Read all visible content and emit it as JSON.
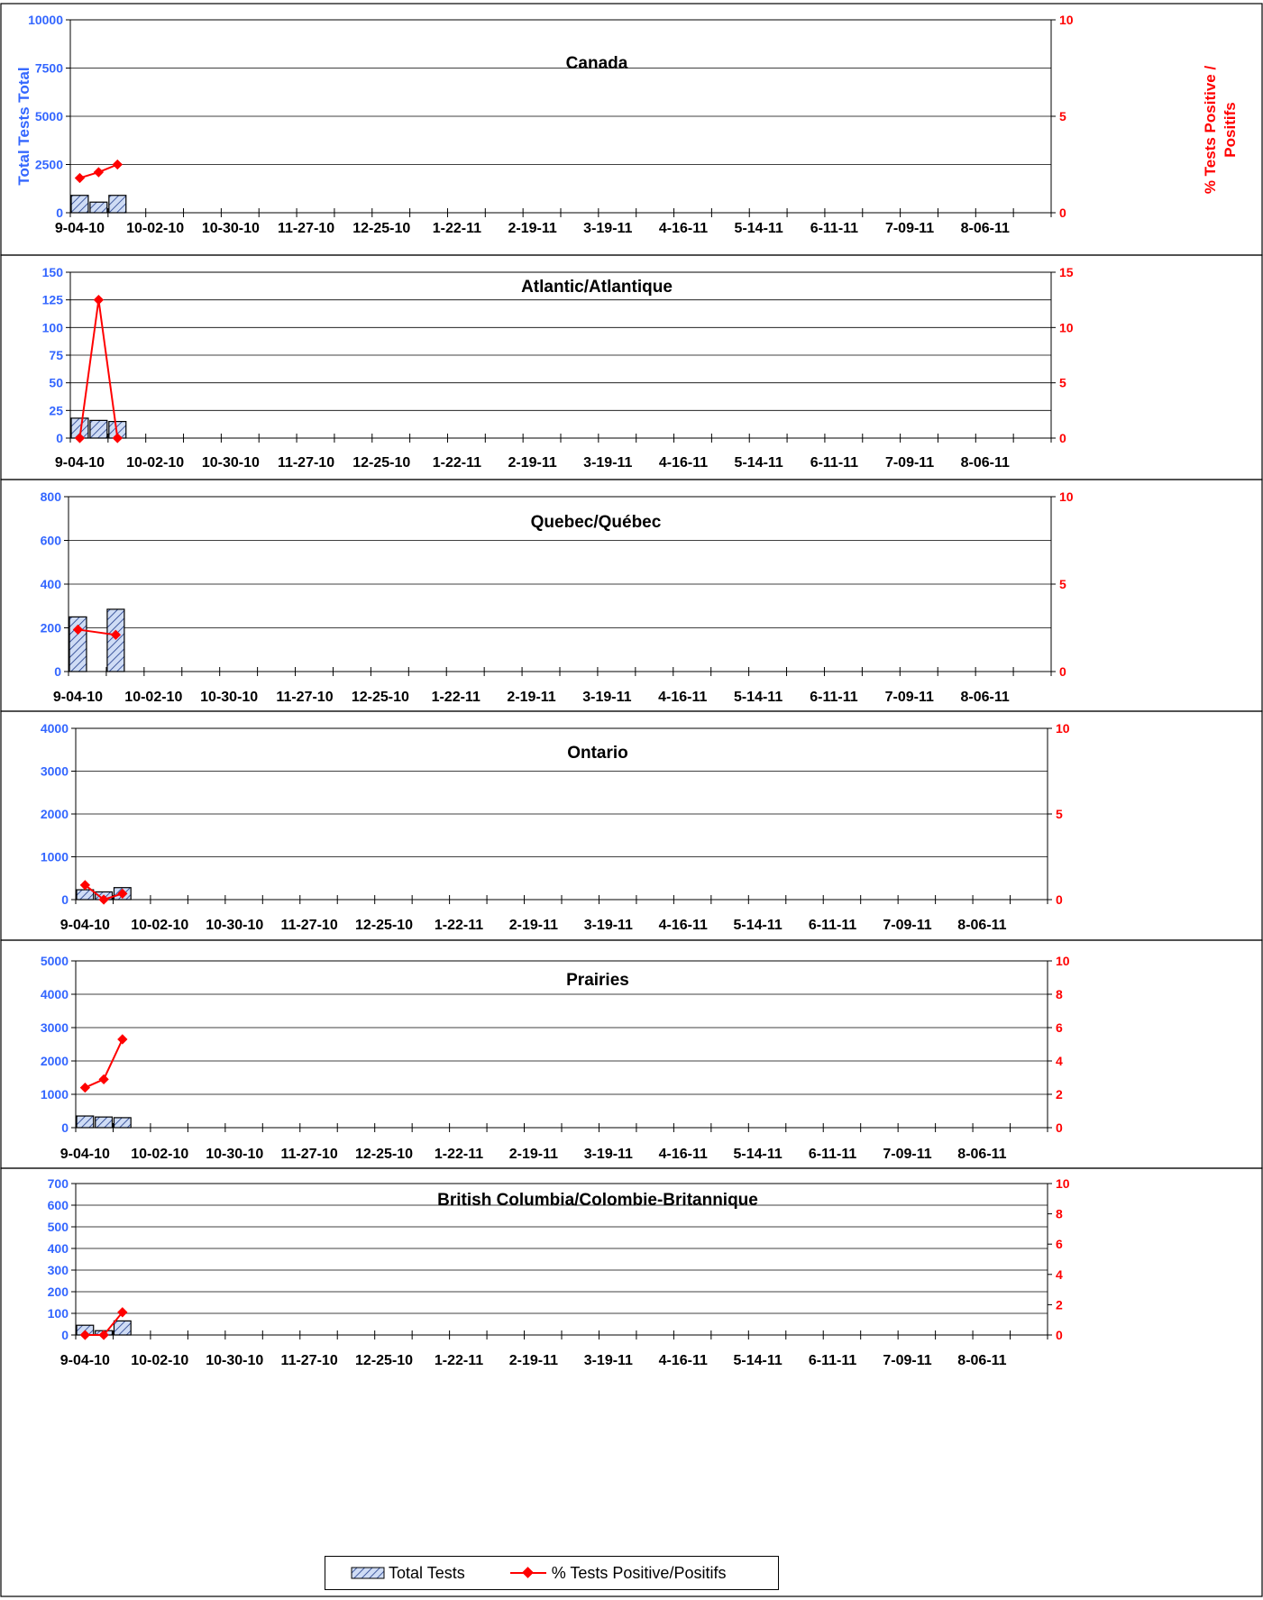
{
  "chart_data": {
    "type": "bar",
    "colors": {
      "bar_fill": "#cfdcf5",
      "bar_hatch": "#1f3b8a",
      "bar_stroke": "#000000",
      "line": "#ff0000",
      "left_axis_text": "#3366ff",
      "right_axis_text": "#ff0000"
    },
    "x_tick_labels": [
      "9-04-10",
      "10-02-10",
      "10-30-10",
      "11-27-10",
      "12-25-10",
      "1-22-11",
      "2-19-11",
      "3-19-11",
      "4-16-11",
      "5-14-11",
      "6-11-11",
      "7-09-11",
      "8-06-11"
    ],
    "x_range_weeks": 52,
    "left_axis_label": "Total Tests Total",
    "right_axis_label": "% Tests Positive / Positifs",
    "legend": {
      "bars": "Total Tests",
      "line": "% Tests Positive/Positifs"
    },
    "panels": [
      {
        "title": "Canada",
        "ylim": [
          0,
          10000
        ],
        "yticks": [
          0,
          2500,
          5000,
          7500,
          10000
        ],
        "y2lim": [
          0,
          10
        ],
        "y2ticks": [
          0,
          5,
          10
        ],
        "bars": [
          {
            "week": 0,
            "value": 900
          },
          {
            "week": 1,
            "value": 550
          },
          {
            "week": 2,
            "value": 900
          }
        ],
        "line": [
          {
            "week": 0,
            "value": 1.8
          },
          {
            "week": 1,
            "value": 2.1
          },
          {
            "week": 2,
            "value": 2.5
          }
        ]
      },
      {
        "title": "Atlantic/Atlantique",
        "ylim": [
          0,
          150
        ],
        "yticks": [
          0,
          25,
          50,
          75,
          100,
          125,
          150
        ],
        "y2lim": [
          0,
          15
        ],
        "y2ticks": [
          0,
          5,
          10,
          15
        ],
        "bars": [
          {
            "week": 0,
            "value": 18
          },
          {
            "week": 1,
            "value": 16
          },
          {
            "week": 2,
            "value": 15
          }
        ],
        "line": [
          {
            "week": 0,
            "value": 0
          },
          {
            "week": 1,
            "value": 12.5
          },
          {
            "week": 2,
            "value": 0
          }
        ]
      },
      {
        "title": "Quebec/Québec",
        "ylim": [
          0,
          800
        ],
        "yticks": [
          0,
          200,
          400,
          600,
          800
        ],
        "y2lim": [
          0,
          10
        ],
        "y2ticks": [
          0,
          5,
          10
        ],
        "bars": [
          {
            "week": 0,
            "value": 250
          },
          {
            "week": 2,
            "value": 285
          }
        ],
        "line": [
          {
            "week": 0,
            "value": 2.4
          },
          {
            "week": 2,
            "value": 2.1
          }
        ]
      },
      {
        "title": "Ontario",
        "ylim": [
          0,
          4000
        ],
        "yticks": [
          0,
          1000,
          2000,
          3000,
          4000
        ],
        "y2lim": [
          0,
          10
        ],
        "y2ticks": [
          0,
          5,
          10
        ],
        "bars": [
          {
            "week": 0,
            "value": 230
          },
          {
            "week": 1,
            "value": 180
          },
          {
            "week": 2,
            "value": 280
          }
        ],
        "line": [
          {
            "week": 0,
            "value": 0.85
          },
          {
            "week": 1,
            "value": 0
          },
          {
            "week": 2,
            "value": 0.35
          }
        ]
      },
      {
        "title": "Prairies",
        "ylim": [
          0,
          5000
        ],
        "yticks": [
          0,
          1000,
          2000,
          3000,
          4000,
          5000
        ],
        "y2lim": [
          0,
          10
        ],
        "y2ticks": [
          0,
          2,
          4,
          6,
          8,
          10
        ],
        "bars": [
          {
            "week": 0,
            "value": 350
          },
          {
            "week": 1,
            "value": 320
          },
          {
            "week": 2,
            "value": 300
          }
        ],
        "line": [
          {
            "week": 0,
            "value": 2.4
          },
          {
            "week": 1,
            "value": 2.9
          },
          {
            "week": 2,
            "value": 5.3
          }
        ]
      },
      {
        "title": "British Columbia/Colombie-Britannique",
        "ylim": [
          0,
          700
        ],
        "yticks": [
          0,
          100,
          200,
          300,
          400,
          500,
          600,
          700
        ],
        "y2lim": [
          0,
          10
        ],
        "y2ticks": [
          0,
          2,
          4,
          6,
          8,
          10
        ],
        "bars": [
          {
            "week": 0,
            "value": 45
          },
          {
            "week": 1,
            "value": 20
          },
          {
            "week": 2,
            "value": 65
          }
        ],
        "line": [
          {
            "week": 0,
            "value": 0
          },
          {
            "week": 1,
            "value": 0
          },
          {
            "week": 2,
            "value": 1.5
          }
        ]
      }
    ]
  }
}
